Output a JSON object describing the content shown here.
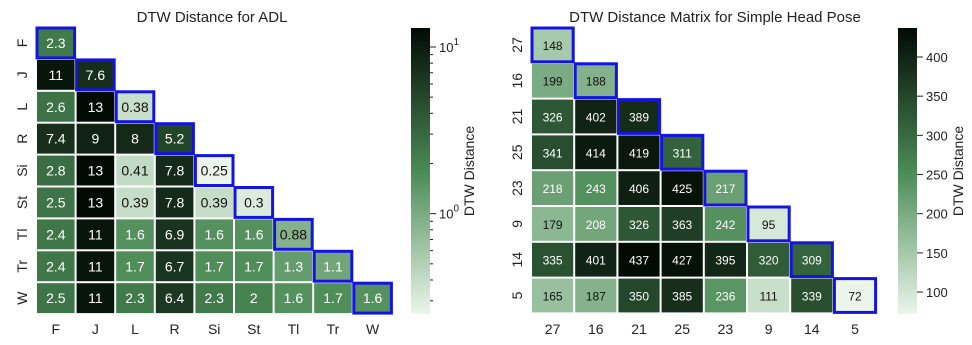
{
  "chart_data": [
    {
      "type": "heatmap",
      "title": "DTW Distance for ADL",
      "row_labels": [
        "F",
        "J",
        "L",
        "R",
        "Si",
        "St",
        "Tl",
        "Tr",
        "W"
      ],
      "col_labels": [
        "F",
        "J",
        "L",
        "R",
        "Si",
        "St",
        "Tl",
        "Tr",
        "W"
      ],
      "values": [
        [
          "2.3"
        ],
        [
          "11",
          "7.6"
        ],
        [
          "2.6",
          "13",
          "0.38"
        ],
        [
          "7.4",
          "9",
          "8",
          "5.2"
        ],
        [
          "2.8",
          "13",
          "0.41",
          "7.8",
          "0.25"
        ],
        [
          "2.5",
          "13",
          "0.39",
          "7.8",
          "0.39",
          "0.3"
        ],
        [
          "2.4",
          "11",
          "1.6",
          "6.9",
          "1.6",
          "1.6",
          "0.88"
        ],
        [
          "2.4",
          "11",
          "1.7",
          "6.7",
          "1.7",
          "1.7",
          "1.3",
          "1.1"
        ],
        [
          "2.5",
          "11",
          "2.3",
          "6.4",
          "2.3",
          "2",
          "1.6",
          "1.7",
          "1.6"
        ]
      ],
      "triangle": "lower",
      "diagonal_highlight": true,
      "highlight_color": "#1414e0",
      "colorbar": {
        "label": "DTW Distance",
        "scale": "log",
        "ticks": [
          {
            "base": "10",
            "exp": "0",
            "value": 1
          },
          {
            "base": "10",
            "exp": "1",
            "value": 10
          }
        ],
        "range": [
          0.25,
          13
        ]
      },
      "colormap": [
        "#eaf6ea",
        "#4a8a55",
        "#020a04"
      ]
    },
    {
      "type": "heatmap",
      "title": "DTW Distance Matrix for Simple Head Pose",
      "row_labels": [
        "27",
        "16",
        "21",
        "25",
        "23",
        "9",
        "14",
        "5"
      ],
      "col_labels": [
        "27",
        "16",
        "21",
        "25",
        "23",
        "9",
        "14",
        "5"
      ],
      "values": [
        [
          "148"
        ],
        [
          "199",
          "188"
        ],
        [
          "326",
          "402",
          "389"
        ],
        [
          "341",
          "414",
          "419",
          "311"
        ],
        [
          "218",
          "243",
          "406",
          "425",
          "217"
        ],
        [
          "179",
          "208",
          "326",
          "363",
          "242",
          "95"
        ],
        [
          "335",
          "401",
          "437",
          "427",
          "395",
          "320",
          "309"
        ],
        [
          "165",
          "187",
          "350",
          "385",
          "236",
          "111",
          "339",
          "72"
        ]
      ],
      "triangle": "lower",
      "diagonal_highlight": true,
      "highlight_color": "#1414e0",
      "colorbar": {
        "label": "DTW Distance",
        "scale": "linear",
        "ticks": [
          "100",
          "150",
          "200",
          "250",
          "300",
          "350",
          "400"
        ],
        "range": [
          72,
          437
        ]
      },
      "colormap": [
        "#eaf6ea",
        "#4a8a55",
        "#020a04"
      ]
    }
  ]
}
